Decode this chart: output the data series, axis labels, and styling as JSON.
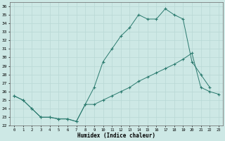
{
  "xlabel": "Humidex (Indice chaleur)",
  "xlim": [
    -0.5,
    23.5
  ],
  "ylim": [
    22,
    36.5
  ],
  "xticks": [
    0,
    1,
    2,
    3,
    4,
    5,
    6,
    7,
    8,
    9,
    10,
    11,
    12,
    13,
    14,
    15,
    16,
    17,
    18,
    19,
    20,
    21,
    22,
    23
  ],
  "yticks": [
    22,
    23,
    24,
    25,
    26,
    27,
    28,
    29,
    30,
    31,
    32,
    33,
    34,
    35,
    36
  ],
  "bg_color": "#cde8e5",
  "line_color": "#2a7a6e",
  "grid_color": "#b8d8d5",
  "upper_x": [
    0,
    1,
    2,
    3,
    4,
    5,
    6,
    7,
    8,
    9,
    10,
    11,
    12,
    13,
    14,
    15,
    16,
    17,
    18,
    19,
    20,
    21,
    22
  ],
  "upper_y": [
    25.5,
    25.0,
    24.0,
    23.0,
    23.0,
    22.8,
    22.8,
    22.5,
    24.5,
    26.5,
    29.5,
    31.0,
    32.5,
    33.5,
    35.0,
    34.5,
    34.5,
    35.7,
    35.0,
    34.5,
    29.5,
    28.0,
    26.5
  ],
  "lower_x": [
    0,
    1,
    2,
    3,
    4,
    5,
    6,
    7,
    8,
    9,
    10,
    11,
    12,
    13,
    14,
    15,
    16,
    17,
    18,
    19,
    20,
    21,
    22,
    23
  ],
  "lower_y": [
    25.5,
    25.0,
    24.0,
    23.0,
    23.0,
    22.8,
    22.8,
    22.5,
    24.5,
    24.5,
    25.0,
    25.5,
    26.0,
    26.5,
    27.2,
    27.7,
    28.2,
    28.7,
    29.2,
    29.8,
    30.5,
    26.5,
    26.0,
    25.7
  ]
}
